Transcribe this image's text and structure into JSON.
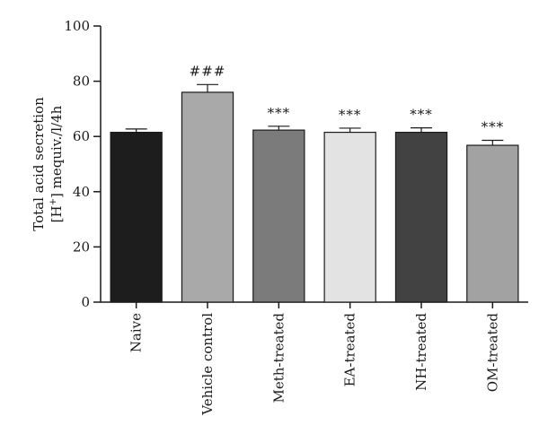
{
  "chart_data": {
    "type": "bar",
    "title": "",
    "xlabel": "",
    "ylabel_line1": "Total acid secretion",
    "ylabel_line2_pre": "[H",
    "ylabel_line2_sup": "+",
    "ylabel_line2_post": "] mequiv./l/4h",
    "ylim": [
      0,
      100
    ],
    "yticks": [
      "0",
      "20",
      "40",
      "60",
      "80",
      "100"
    ],
    "categories": [
      "Naive",
      "Vehicle control",
      "Meth-treated",
      "EA-treated",
      "NH-treated",
      "OM-treated"
    ],
    "values": [
      61.5,
      76,
      62.3,
      61.5,
      61.5,
      56.8
    ],
    "errors": [
      1.2,
      2.8,
      1.4,
      1.5,
      1.6,
      1.8
    ],
    "significance": [
      "",
      "###",
      "***",
      "***",
      "***",
      "***"
    ],
    "bar_colors": [
      "#1d1d1d",
      "#a9a9a9",
      "#7b7b7b",
      "#e3e3e3",
      "#424242",
      "#a2a2a2"
    ]
  }
}
